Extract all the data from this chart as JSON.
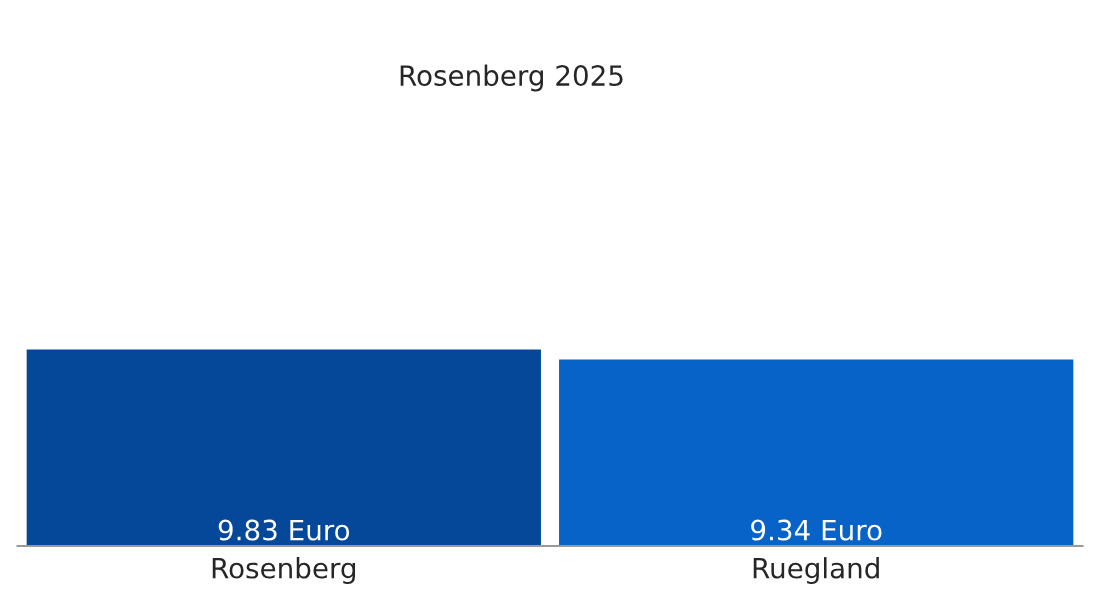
{
  "chart_data": {
    "type": "bar",
    "title": "Rosenberg 2025",
    "categories": [
      "Rosenberg",
      "Ruegland"
    ],
    "values": [
      9.83,
      9.34
    ],
    "colors": [
      "#05489a",
      "#0863c9"
    ],
    "value_labels": [
      "9.83 Euro",
      "9.34 Euro"
    ],
    "grid": false,
    "legend": false
  }
}
